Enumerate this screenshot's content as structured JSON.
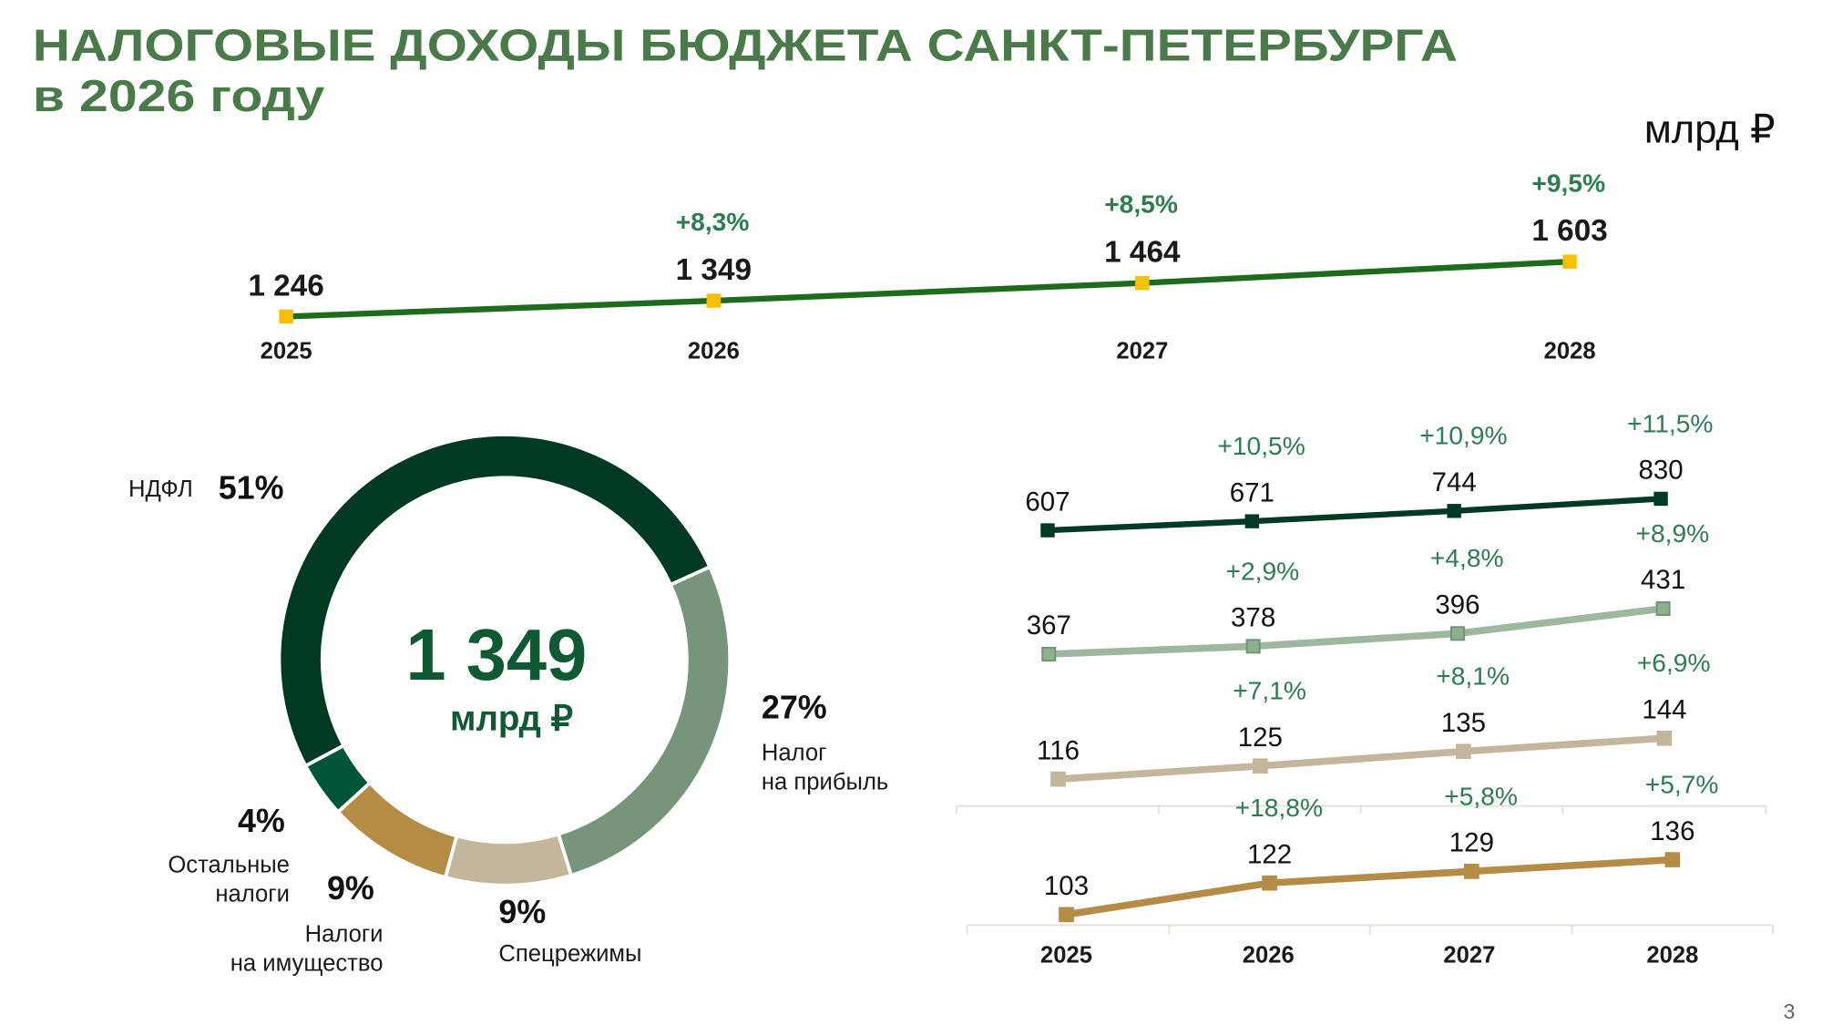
{
  "title": {
    "line1": "НАЛОГОВЫЕ ДОХОДЫ БЮДЖЕТА САНКТ-ПЕТЕРБУРГА",
    "line2": "в 2026 году"
  },
  "unit": "млрд ₽",
  "page_number": "3",
  "colors": {
    "title": "#4a7a4a",
    "growth": "#2e7d4f",
    "total_line": "#1e6b1e",
    "total_marker": "#f5c000"
  },
  "chart_data": [
    {
      "type": "line",
      "categories": [
        "2025",
        "2026",
        "2027",
        "2028"
      ],
      "values": [
        1246,
        1349,
        1464,
        1603
      ],
      "value_labels": [
        "1 246",
        "1 349",
        "1 464",
        "1 603"
      ],
      "growth_labels": [
        "",
        "+8,3%",
        "+8,5%",
        "+9,5%"
      ]
    },
    {
      "type": "pie",
      "center_value": "1 349",
      "center_unit": "млрд ₽",
      "slices": [
        {
          "label": "НДФЛ",
          "label_lines": [
            "НДФЛ"
          ],
          "value": 51,
          "pct_label": "51%",
          "color": "#003a22"
        },
        {
          "label": "Налог на прибыль",
          "label_lines": [
            "Налог",
            "на прибыль"
          ],
          "value": 27,
          "pct_label": "27%",
          "color": "#76957a"
        },
        {
          "label": "Спецрежимы",
          "label_lines": [
            "Спецрежимы"
          ],
          "value": 9,
          "pct_label": "9%",
          "color": "#c4b69c"
        },
        {
          "label": "Налоги на имущество",
          "label_lines": [
            "Налоги",
            "на имущество"
          ],
          "value": 9,
          "pct_label": "9%",
          "color": "#b58c45"
        },
        {
          "label": "Остальные налоги",
          "label_lines": [
            "Остальные",
            "налоги"
          ],
          "value": 4,
          "pct_label": "4%",
          "color": "#00543a"
        }
      ]
    },
    {
      "type": "line",
      "categories": [
        "2025",
        "2026",
        "2027",
        "2028"
      ],
      "series": [
        {
          "values": [
            607,
            671,
            744,
            830
          ],
          "value_labels": [
            "607",
            "671",
            "744",
            "830"
          ],
          "growth_labels": [
            "",
            "+10,5%",
            "+10,9%",
            "+11,5%"
          ],
          "color": "#003a22",
          "marker": "#003a22"
        },
        {
          "values": [
            367,
            378,
            396,
            431
          ],
          "value_labels": [
            "367",
            "378",
            "396",
            "431"
          ],
          "growth_labels": [
            "",
            "+2,9%",
            "+4,8%",
            "+8,9%"
          ],
          "color": "#9db89f",
          "marker": "#6f9574"
        },
        {
          "values": [
            116,
            125,
            135,
            144
          ],
          "value_labels": [
            "116",
            "125",
            "135",
            "144"
          ],
          "growth_labels": [
            "",
            "+7,1%",
            "+8,1%",
            "+6,9%"
          ],
          "color": "#c4b69c",
          "marker": "#c4b69c"
        },
        {
          "values": [
            103,
            122,
            129,
            136
          ],
          "value_labels": [
            "103",
            "122",
            "129",
            "136"
          ],
          "growth_labels": [
            "",
            "+18,8%",
            "+5,8%",
            "+5,7%"
          ],
          "color": "#b58c45",
          "marker": "#b58c45"
        }
      ]
    }
  ]
}
